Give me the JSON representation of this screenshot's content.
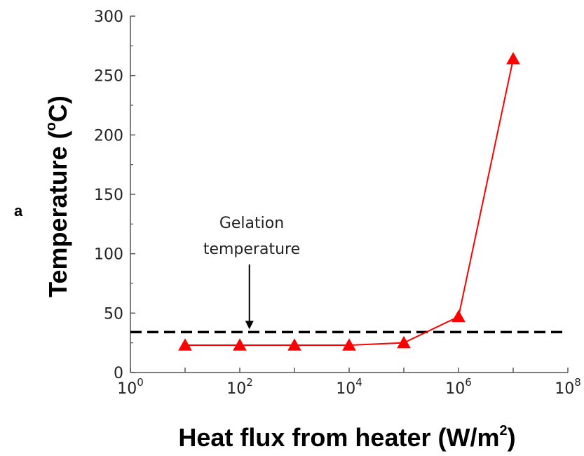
{
  "chart_data": {
    "type": "line",
    "panel_label": "a",
    "xlabel": "Heat flux from heater (W/m",
    "xlabel_sup": "2",
    "xlabel_end": ")",
    "ylabel": "Temperature (",
    "ylabel_sup": "o",
    "ylabel_end": "C)",
    "x_scale": "log",
    "xlim": [
      1,
      100000000
    ],
    "ylim": [
      0,
      300
    ],
    "x_ticks": [
      {
        "base": "10",
        "exp": "0",
        "value": 1
      },
      {
        "base": "10",
        "exp": "2",
        "value": 100
      },
      {
        "base": "10",
        "exp": "4",
        "value": 10000
      },
      {
        "base": "10",
        "exp": "6",
        "value": 1000000
      },
      {
        "base": "10",
        "exp": "8",
        "value": 100000000
      }
    ],
    "y_ticks": [
      "0",
      "50",
      "100",
      "150",
      "200",
      "250",
      "300"
    ],
    "grid": false,
    "series": [
      {
        "x": [
          10,
          100,
          1000,
          10000,
          100000,
          1000000,
          10000000
        ],
        "y": [
          23,
          23,
          23,
          23,
          25,
          47,
          264
        ],
        "color": "#ff0000",
        "marker": "triangle"
      }
    ],
    "reference_line": {
      "y": 34,
      "style": "dashed",
      "color": "#000000"
    },
    "annotation": {
      "lines": [
        "Gelation",
        "temperature"
      ],
      "arrow_to_x": 150,
      "arrow_to_y": 34
    }
  }
}
